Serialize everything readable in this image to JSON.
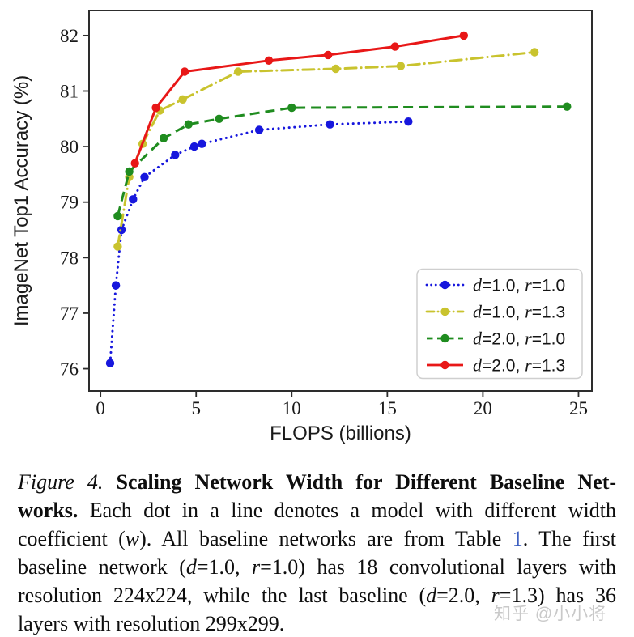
{
  "chart_data": {
    "type": "line",
    "title": "",
    "xlabel": "FLOPS (billions)",
    "ylabel": "ImageNet Top1 Accuracy (%)",
    "xlim": [
      -0.6,
      25.7
    ],
    "ylim": [
      75.6,
      82.45
    ],
    "xticks": [
      0,
      5,
      10,
      15,
      20,
      25
    ],
    "yticks": [
      76,
      77,
      78,
      79,
      80,
      81,
      82
    ],
    "grid": false,
    "legend_position": "lower right",
    "series": [
      {
        "name": "d=1.0, r=1.0",
        "color": "#1717dd",
        "linestyle": "dotted",
        "marker": "circle",
        "x": [
          0.5,
          0.8,
          1.1,
          1.7,
          2.3,
          3.9,
          4.9,
          5.3,
          8.3,
          12.0,
          16.1
        ],
        "y": [
          76.1,
          77.5,
          78.5,
          79.05,
          79.45,
          79.85,
          80.0,
          80.05,
          80.3,
          80.4,
          80.45
        ]
      },
      {
        "name": "d=1.0, r=1.3",
        "color": "#c9c32e",
        "linestyle": "dashdot",
        "marker": "circle",
        "x": [
          0.9,
          1.5,
          2.2,
          3.1,
          4.3,
          7.2,
          12.3,
          15.7,
          22.7
        ],
        "y": [
          78.2,
          79.45,
          80.05,
          80.65,
          80.85,
          81.35,
          81.4,
          81.45,
          81.7
        ]
      },
      {
        "name": "d=2.0, r=1.0",
        "color": "#1f8c1f",
        "linestyle": "dashed",
        "marker": "circle",
        "x": [
          0.9,
          1.5,
          3.3,
          4.6,
          6.2,
          10.0,
          24.4
        ],
        "y": [
          78.75,
          79.55,
          80.15,
          80.4,
          80.5,
          80.7,
          80.72
        ]
      },
      {
        "name": "d=2.0, r=1.3",
        "color": "#e81717",
        "linestyle": "solid",
        "marker": "circle",
        "x": [
          1.8,
          2.9,
          4.4,
          8.8,
          11.9,
          15.4,
          19.0
        ],
        "y": [
          79.7,
          80.7,
          81.35,
          81.55,
          81.65,
          81.8,
          82.0
        ]
      }
    ]
  },
  "caption": {
    "link_color": "#3d5fc0",
    "lines": [
      [
        {
          "t": "Figure 4.",
          "s": "i"
        },
        {
          "t": " ",
          "s": "n"
        },
        {
          "t": "Scaling Network Width for Different Baseline Net-",
          "s": "b"
        }
      ],
      [
        {
          "t": "works.",
          "s": "b"
        },
        {
          "t": " Each dot in a line denotes a model with different width",
          "s": "n"
        }
      ],
      [
        {
          "t": "coefficient (",
          "s": "n"
        },
        {
          "t": "w",
          "s": "i"
        },
        {
          "t": "). All baseline networks are from Table ",
          "s": "n"
        },
        {
          "t": "1",
          "s": "l"
        },
        {
          "t": ". The first",
          "s": "n"
        }
      ],
      [
        {
          "t": "baseline network (",
          "s": "n"
        },
        {
          "t": "d",
          "s": "i"
        },
        {
          "t": "=1.0, ",
          "s": "n"
        },
        {
          "t": "r",
          "s": "i"
        },
        {
          "t": "=1.0) has 18 convolutional layers with",
          "s": "n"
        }
      ],
      [
        {
          "t": "resolution 224x224, while the last baseline (",
          "s": "n"
        },
        {
          "t": "d",
          "s": "i"
        },
        {
          "t": "=2.0, ",
          "s": "n"
        },
        {
          "t": "r",
          "s": "i"
        },
        {
          "t": "=1.3) has 36",
          "s": "n"
        }
      ],
      [
        {
          "t": "layers with resolution 299x299.",
          "s": "n"
        }
      ]
    ]
  },
  "watermark": {
    "text": "知乎 @小小将",
    "color": "#c9c9c9"
  }
}
